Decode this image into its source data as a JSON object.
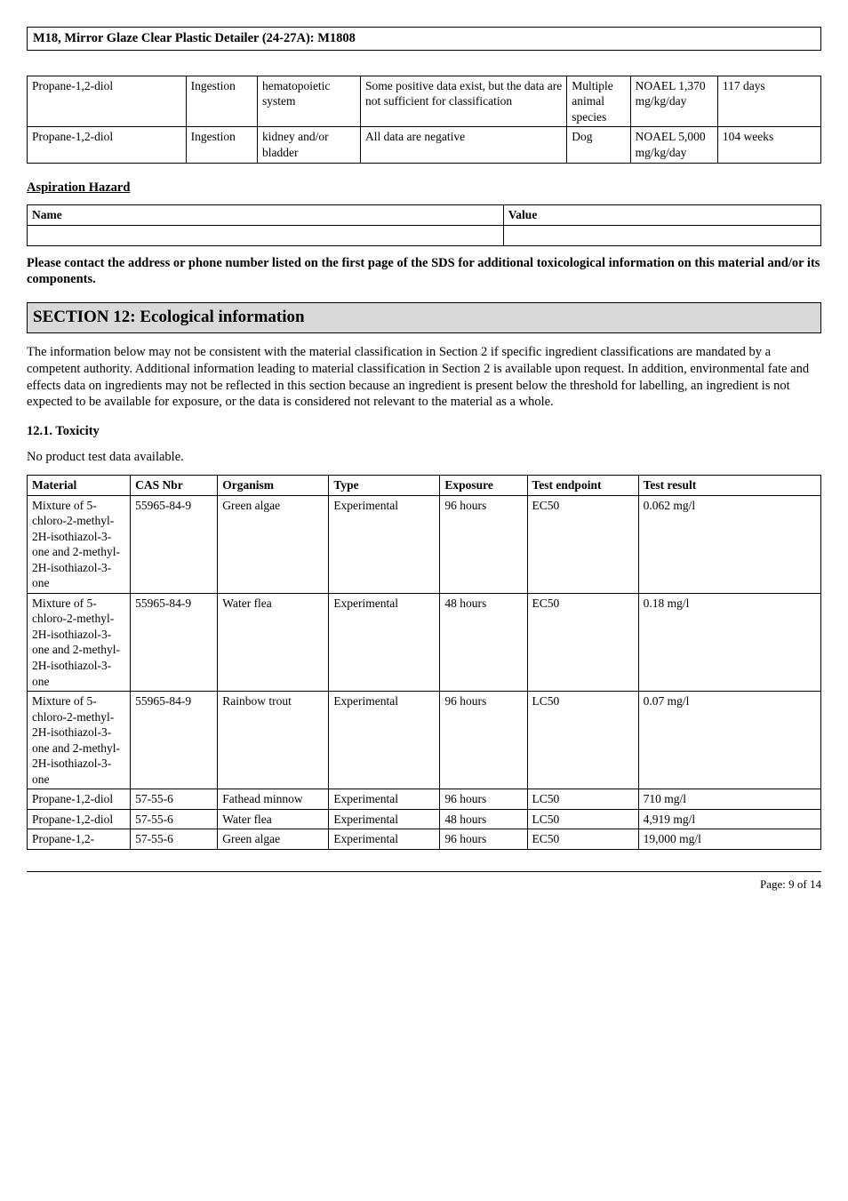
{
  "document_title": "M18, Mirror Glaze Clear Plastic Detailer (24-27A): M1808",
  "table1": {
    "rows": [
      {
        "substance": "Propane-1,2-diol",
        "route": "Ingestion",
        "system": "hematopoietic system",
        "effect": "Some positive data exist, but the data are not sufficient for classification",
        "species": "Multiple animal species",
        "value": "NOAEL 1,370 mg/kg/day",
        "duration": "117 days"
      },
      {
        "substance": "Propane-1,2-diol",
        "route": "Ingestion",
        "system": "kidney and/or bladder",
        "effect": "All data are negative",
        "species": "Dog",
        "value": "NOAEL 5,000 mg/kg/day",
        "duration": "104 weeks"
      }
    ],
    "col_widths": [
      "20%",
      "9%",
      "13%",
      "26%",
      "8%",
      "11%",
      "13%"
    ]
  },
  "aspiration": {
    "heading": "Aspiration Hazard",
    "h_name": "Name",
    "h_value": "Value"
  },
  "notice": "Please contact the address or phone number listed on the first page of the SDS for additional toxicological information on this material and/or its components.",
  "section12": {
    "title": "SECTION 12: Ecological information",
    "intro": "The information below may not be consistent with the material classification in Section 2 if specific ingredient classifications are mandated by a competent authority. Additional information leading to material classification in Section 2 is available upon request.  In addition, environmental fate and effects data on ingredients may not be reflected in this section because an ingredient  is present below the threshold for labelling, an ingredient  is not expected to be available for exposure, or the data is considered not relevant to the material as a whole.",
    "sub1": "12.1. Toxicity",
    "no_data": "No product test data available."
  },
  "tox_table": {
    "headers": [
      "Material",
      "CAS Nbr",
      "Organism",
      "Type",
      "Exposure",
      "Test endpoint",
      "Test result"
    ],
    "col_widths": [
      "13%",
      "11%",
      "14%",
      "14%",
      "11%",
      "14%",
      "23%"
    ],
    "rows": [
      {
        "material": "Mixture of 5-chloro-2-methyl-2H-isothiazol-3-one and 2-methyl-2H-isothiazol-3-one",
        "cas": "55965-84-9",
        "organism": "Green algae",
        "type": "Experimental",
        "exposure": "96 hours",
        "endpoint": "EC50",
        "result": "0.062 mg/l"
      },
      {
        "material": "Mixture of 5-chloro-2-methyl-2H-isothiazol-3-one and 2-methyl-2H-isothiazol-3-one",
        "cas": "55965-84-9",
        "organism": "Water flea",
        "type": "Experimental",
        "exposure": "48 hours",
        "endpoint": "EC50",
        "result": "0.18 mg/l"
      },
      {
        "material": "Mixture of 5-chloro-2-methyl-2H-isothiazol-3-one and 2-methyl-2H-isothiazol-3-one",
        "cas": "55965-84-9",
        "organism": "Rainbow trout",
        "type": "Experimental",
        "exposure": "96 hours",
        "endpoint": "LC50",
        "result": "0.07 mg/l"
      },
      {
        "material": "Propane-1,2-diol",
        "cas": "57-55-6",
        "organism": "Fathead minnow",
        "type": "Experimental",
        "exposure": "96 hours",
        "endpoint": "LC50",
        "result": "710 mg/l"
      },
      {
        "material": "Propane-1,2-diol",
        "cas": "57-55-6",
        "organism": "Water flea",
        "type": "Experimental",
        "exposure": "48 hours",
        "endpoint": "LC50",
        "result": "4,919 mg/l"
      },
      {
        "material": "Propane-1,2-",
        "cas": "57-55-6",
        "organism": "Green algae",
        "type": "Experimental",
        "exposure": "96 hours",
        "endpoint": "EC50",
        "result": "19,000 mg/l"
      }
    ]
  },
  "footer": "Page: 9 of  14"
}
